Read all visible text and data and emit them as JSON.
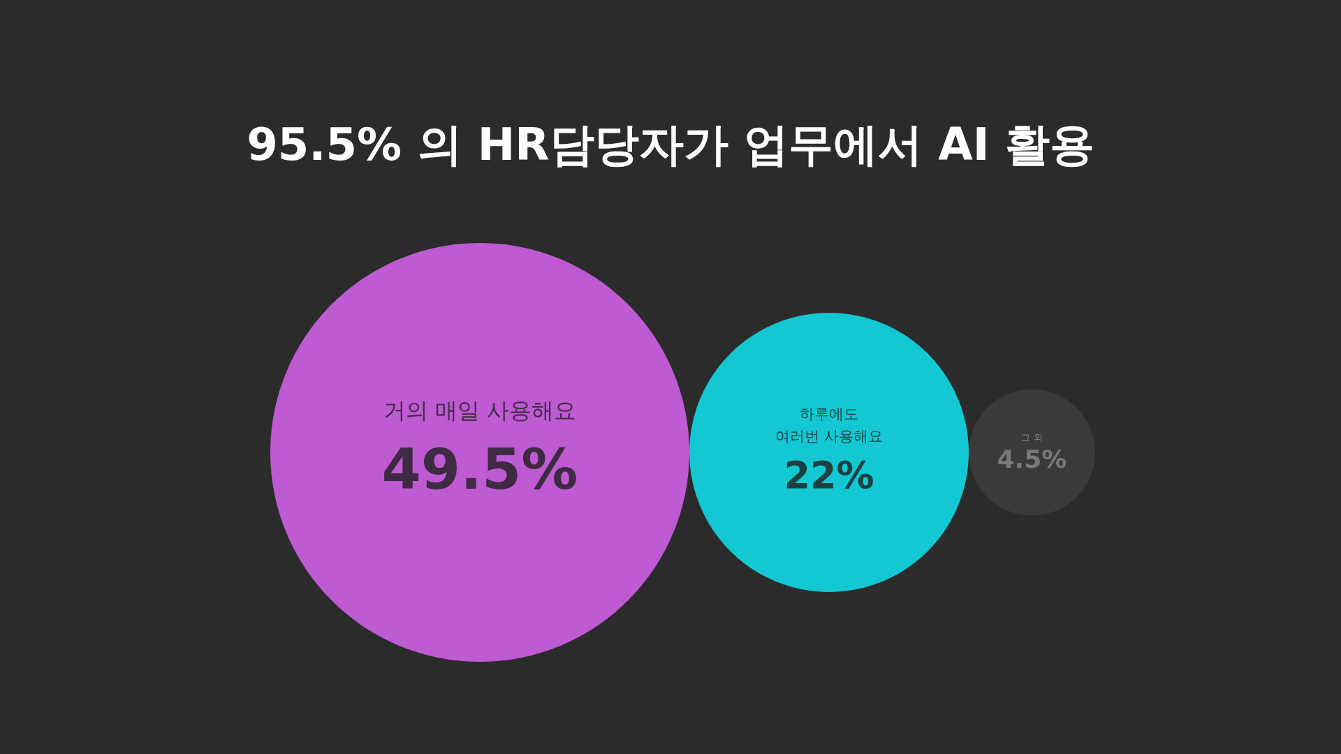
{
  "chart_data": {
    "type": "other",
    "title": "95.5% 의 HR담당자가 업무에서 AI 활용",
    "categories": [
      "거의 매일 사용해요",
      "하루에도\n여러번 사용해요",
      "그 외"
    ],
    "values": [
      49.5,
      22,
      4.5
    ],
    "value_labels": [
      "49.5%",
      "22%",
      "4.5%"
    ],
    "colors": [
      "#e466fd",
      "#0ef0fc",
      "#3f3f3f"
    ]
  }
}
